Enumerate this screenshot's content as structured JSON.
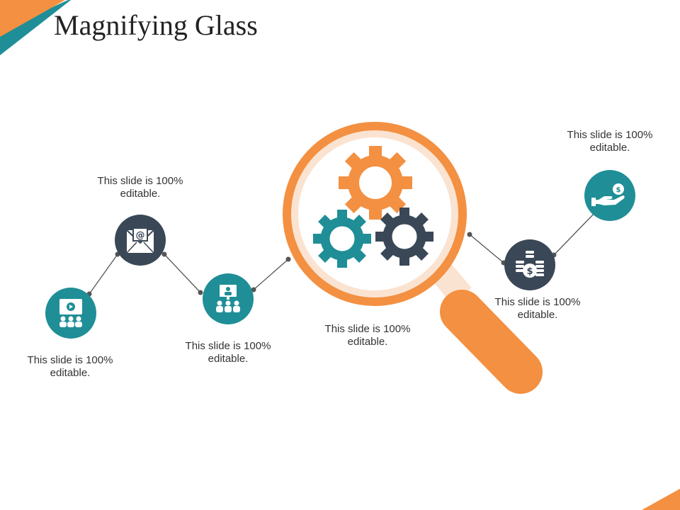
{
  "title": "Magnifying Glass",
  "colors": {
    "orange": "#F39041",
    "teal": "#1F8E97",
    "dark": "#3A4756",
    "connector": "#555555"
  },
  "nodes": [
    {
      "id": "video-presentation",
      "icon": "video-audience-icon",
      "color": "teal",
      "label": [
        "This slide is 100%",
        "editable."
      ]
    },
    {
      "id": "email",
      "icon": "email-envelope-icon",
      "color": "dark",
      "label": [
        "This slide is 100%",
        "editable."
      ]
    },
    {
      "id": "online-meeting",
      "icon": "team-screen-icon",
      "color": "teal",
      "label": [
        "This slide is 100%",
        "editable."
      ]
    },
    {
      "id": "magnifier",
      "icon": "gears-icon",
      "color": "orange",
      "label": [
        "This slide is 100%",
        "editable."
      ]
    },
    {
      "id": "money-stack",
      "icon": "coins-dollar-icon",
      "color": "dark",
      "label": [
        "This slide is 100%",
        "editable."
      ]
    },
    {
      "id": "payment",
      "icon": "hand-coin-icon",
      "color": "teal",
      "label": [
        "This slide is 100%",
        "editable."
      ]
    }
  ]
}
